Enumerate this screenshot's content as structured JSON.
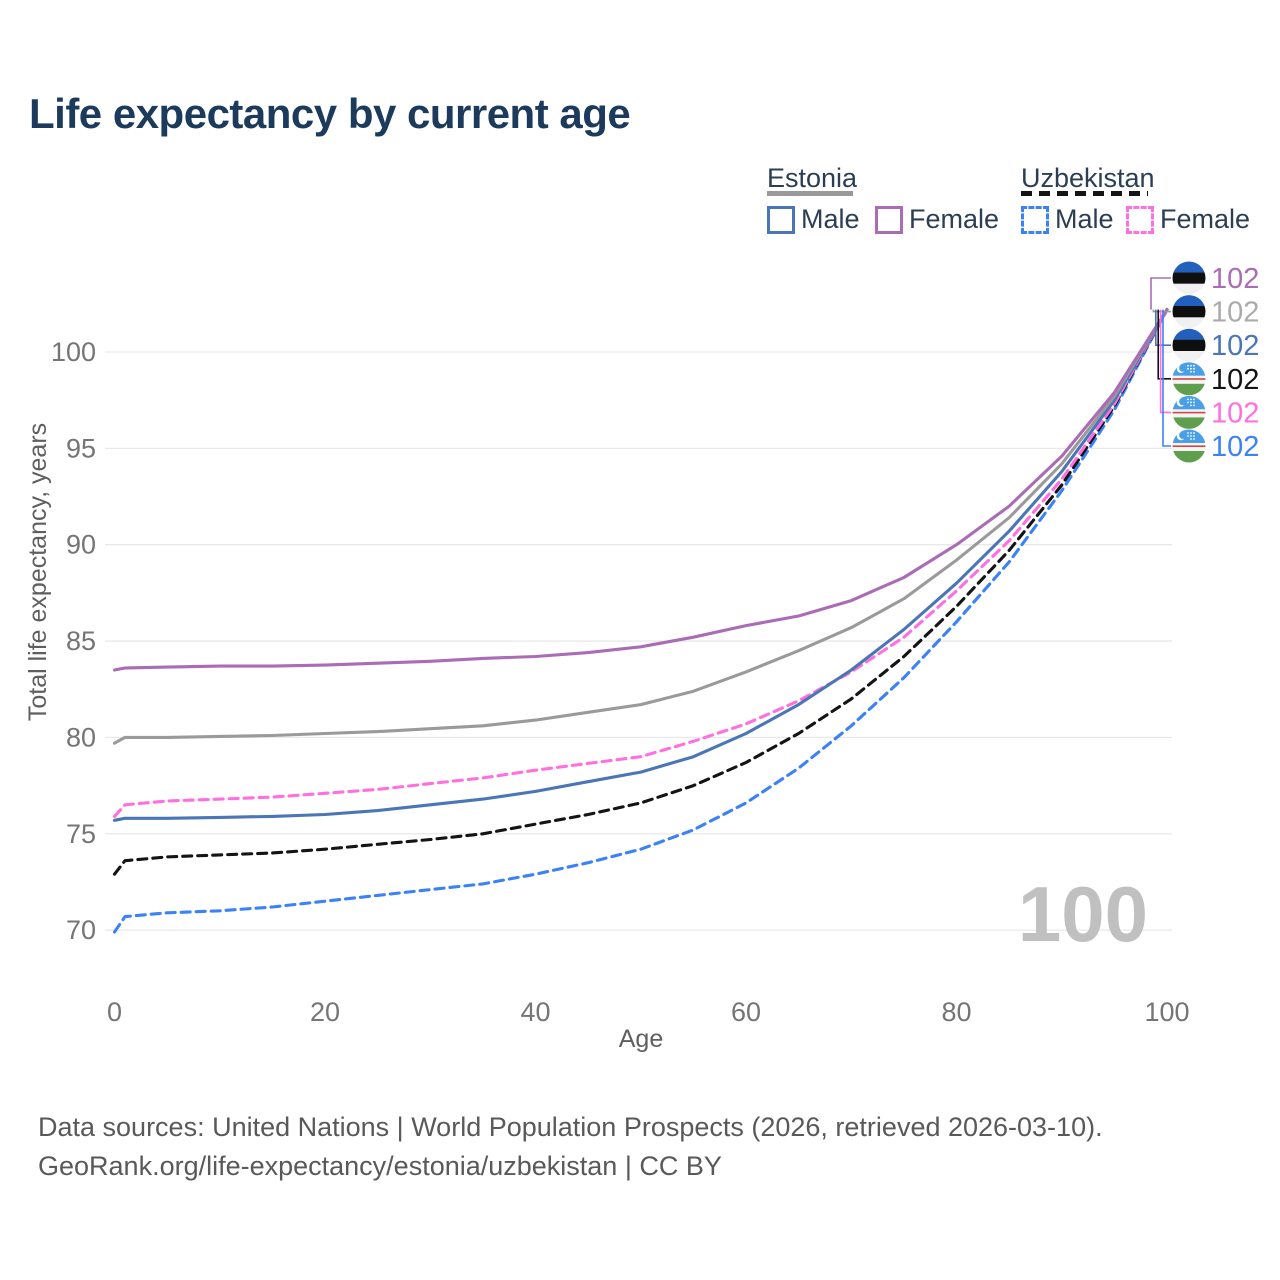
{
  "page": {
    "title": "Life expectancy by current age"
  },
  "legend": {
    "groups": [
      {
        "label": "Estonia",
        "line_style": "solid",
        "line_color": "#999999",
        "items": [
          {
            "label": "Male",
            "color": "#4a76b8",
            "dashed": false
          },
          {
            "label": "Female",
            "color": "#aa6cb4",
            "dashed": false
          }
        ]
      },
      {
        "label": "Uzbekistan",
        "line_style": "dashed",
        "line_color": "#141414",
        "items": [
          {
            "label": "Male",
            "color": "#3b82f6",
            "dashed": true
          },
          {
            "label": "Female",
            "color": "#ff6fdf",
            "dashed": true
          }
        ]
      }
    ]
  },
  "watermark": "100",
  "footer": {
    "line1": "Data sources: United Nations | World Population Prospects (2026, retrieved 2026-03-10).",
    "line2": "GeoRank.org/life-expectancy/estonia/uzbekistan | CC BY"
  },
  "chart_data": {
    "type": "line",
    "title": "Life expectancy by current age",
    "xlabel": "Age",
    "ylabel": "Total life expectancy, years",
    "xlim": [
      0,
      100
    ],
    "ylim": [
      69,
      103
    ],
    "x_ticks": [
      0,
      20,
      40,
      60,
      80,
      100
    ],
    "y_ticks": [
      70,
      75,
      80,
      85,
      90,
      95,
      100
    ],
    "grid": "horizontal",
    "legend_position": "top-right",
    "colors": {
      "estonia_male": "#4a76b8",
      "estonia_female": "#aa6cb4",
      "estonia_total": "#9a9a9a",
      "uzbekistan_male": "#3b82f6",
      "uzbekistan_female": "#ff6fdf",
      "uzbekistan_total": "#141414",
      "grid": "#e9e9e9",
      "tick_text": "#757575"
    },
    "x": [
      0,
      1,
      5,
      10,
      15,
      20,
      25,
      30,
      35,
      40,
      45,
      50,
      55,
      60,
      65,
      70,
      75,
      80,
      85,
      90,
      95,
      100
    ],
    "series": [
      {
        "name": "Uzbekistan Male",
        "country": "Uzbekistan",
        "sex": "Male",
        "icon": "uzbekistan-flag-icon",
        "color": "#3b82f6",
        "label_color": "#3b82f6",
        "dash": true,
        "row": 5,
        "end_label": "102",
        "values": [
          69.9,
          70.7,
          70.9,
          71.0,
          71.2,
          71.5,
          71.8,
          72.1,
          72.4,
          72.9,
          73.5,
          74.2,
          75.2,
          76.6,
          78.4,
          80.6,
          83.1,
          86.0,
          89.1,
          92.8,
          97.0,
          102.2
        ]
      },
      {
        "name": "Uzbekistan Both sexes",
        "country": "Uzbekistan",
        "sex": "Both sexes",
        "icon": "uzbekistan-flag-icon",
        "color": "#141414",
        "label_color": "#141414",
        "dash": true,
        "row": 3,
        "end_label": "102",
        "values": [
          72.9,
          73.6,
          73.8,
          73.9,
          74.0,
          74.2,
          74.45,
          74.7,
          75.0,
          75.5,
          76.0,
          76.6,
          77.5,
          78.7,
          80.2,
          82.0,
          84.2,
          86.8,
          89.7,
          93.1,
          97.2,
          102.2
        ]
      },
      {
        "name": "Uzbekistan Female",
        "country": "Uzbekistan",
        "sex": "Female",
        "icon": "uzbekistan-flag-icon",
        "color": "#ff6fdf",
        "label_color": "#ff6fdf",
        "dash": true,
        "row": 4,
        "end_label": "102",
        "values": [
          75.9,
          76.5,
          76.7,
          76.8,
          76.9,
          77.1,
          77.3,
          77.6,
          77.9,
          78.3,
          78.65,
          79.0,
          79.8,
          80.7,
          81.9,
          83.4,
          85.2,
          87.6,
          90.2,
          93.4,
          97.3,
          102.2
        ]
      },
      {
        "name": "Estonia Male",
        "country": "Estonia",
        "sex": "Male",
        "icon": "estonia-flag-icon",
        "color": "#4a76b8",
        "label_color": "#4a76b8",
        "dash": false,
        "row": 2,
        "end_label": "102",
        "values": [
          75.7,
          75.8,
          75.8,
          75.85,
          75.9,
          76.0,
          76.2,
          76.5,
          76.8,
          77.2,
          77.7,
          78.2,
          79.0,
          80.2,
          81.7,
          83.5,
          85.6,
          88.0,
          90.7,
          93.8,
          97.5,
          102.2
        ]
      },
      {
        "name": "Estonia Both sexes",
        "country": "Estonia",
        "sex": "Both sexes",
        "icon": "estonia-flag-icon",
        "color": "#9a9a9a",
        "label_color": "#ababab",
        "dash": false,
        "row": 1,
        "end_label": "102",
        "values": [
          79.7,
          80.0,
          80.0,
          80.05,
          80.1,
          80.2,
          80.3,
          80.45,
          80.6,
          80.9,
          81.3,
          81.7,
          82.4,
          83.4,
          84.5,
          85.7,
          87.2,
          89.2,
          91.4,
          94.2,
          97.7,
          102.2
        ]
      },
      {
        "name": "Estonia Female",
        "country": "Estonia",
        "sex": "Female",
        "icon": "estonia-flag-icon",
        "color": "#aa6cb4",
        "label_color": "#aa6cb4",
        "dash": false,
        "row": 0,
        "end_label": "102",
        "values": [
          83.5,
          83.6,
          83.65,
          83.7,
          83.7,
          83.75,
          83.85,
          83.95,
          84.1,
          84.2,
          84.4,
          84.7,
          85.2,
          85.8,
          86.3,
          87.1,
          88.3,
          90.0,
          92.0,
          94.6,
          97.9,
          102.2
        ]
      }
    ]
  }
}
